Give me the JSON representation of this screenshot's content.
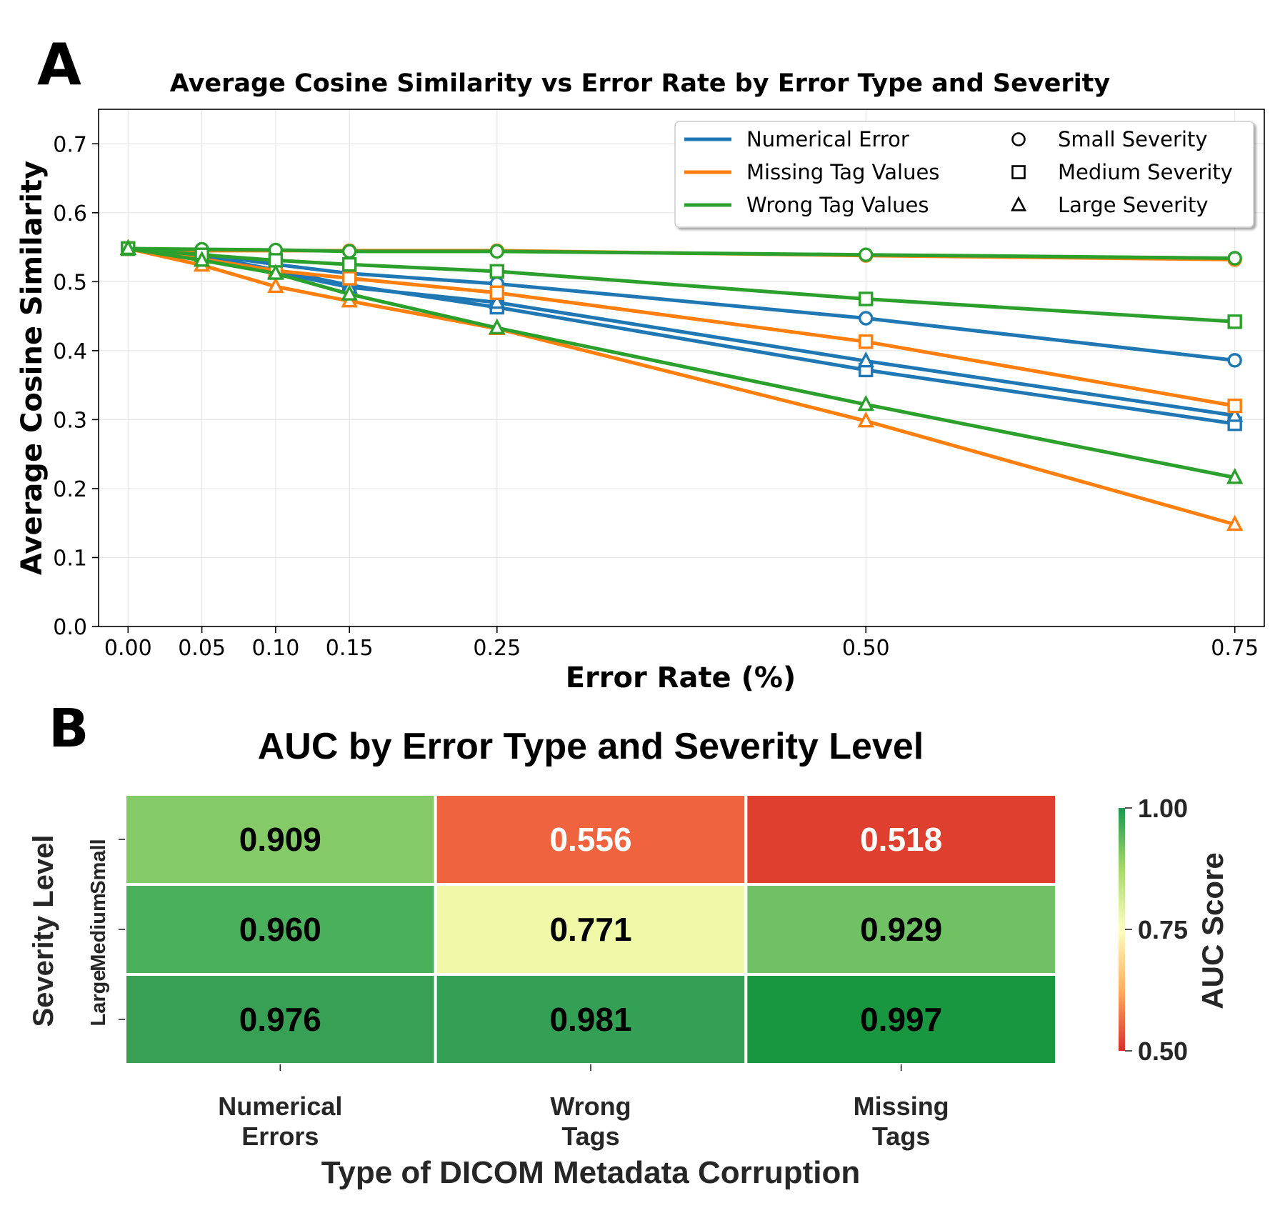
{
  "panel_a": {
    "panel_label": "A",
    "chart_data": {
      "type": "line",
      "title": "Average Cosine Similarity vs Error Rate by Error Type and Severity",
      "xlabel": "Error Rate (%)",
      "ylabel": "Average Cosine Similarity",
      "x": [
        0.0,
        0.05,
        0.1,
        0.15,
        0.25,
        0.5,
        0.75
      ],
      "x_tick_labels": [
        "0.00",
        "0.05",
        "0.10",
        "0.15",
        "0.25",
        "0.50",
        "0.75"
      ],
      "y_ticks": [
        0.0,
        0.1,
        0.2,
        0.3,
        0.4,
        0.5,
        0.6,
        0.7
      ],
      "y_tick_labels": [
        "0.0",
        "0.1",
        "0.2",
        "0.3",
        "0.4",
        "0.5",
        "0.6",
        "0.7"
      ],
      "xlim": [
        -0.02,
        0.77
      ],
      "ylim": [
        0.0,
        0.75
      ],
      "grid": true,
      "legend_position": "top-right",
      "legend_colors": [
        {
          "label": "Numerical Error",
          "color": "#1f77b4"
        },
        {
          "label": "Missing Tag Values",
          "color": "#ff7f0e"
        },
        {
          "label": "Wrong Tag Values",
          "color": "#2ca02c"
        }
      ],
      "legend_markers": [
        {
          "label": "Small Severity",
          "marker": "circle"
        },
        {
          "label": "Medium Severity",
          "marker": "square"
        },
        {
          "label": "Large Severity",
          "marker": "triangle"
        }
      ],
      "series": [
        {
          "name": "Numerical Error - Small",
          "error_type": "Numerical Error",
          "severity": "Small",
          "color": "#1f77b4",
          "marker": "circle",
          "values": [
            0.548,
            0.54,
            0.525,
            0.512,
            0.497,
            0.447,
            0.386
          ]
        },
        {
          "name": "Numerical Error - Medium",
          "error_type": "Numerical Error",
          "severity": "Medium",
          "color": "#1f77b4",
          "marker": "square",
          "values": [
            0.548,
            0.538,
            0.517,
            0.495,
            0.463,
            0.372,
            0.294
          ]
        },
        {
          "name": "Numerical Error - Large",
          "error_type": "Numerical Error",
          "severity": "Large",
          "color": "#1f77b4",
          "marker": "triangle",
          "values": [
            0.548,
            0.537,
            0.514,
            0.492,
            0.47,
            0.385,
            0.306
          ]
        },
        {
          "name": "Missing Tag Values - Small",
          "error_type": "Missing Tag Values",
          "severity": "Small",
          "color": "#ff7f0e",
          "marker": "circle",
          "values": [
            0.548,
            0.545,
            0.545,
            0.545,
            0.545,
            0.538,
            0.532
          ]
        },
        {
          "name": "Missing Tag Values - Medium",
          "error_type": "Missing Tag Values",
          "severity": "Medium",
          "color": "#ff7f0e",
          "marker": "square",
          "values": [
            0.548,
            0.533,
            0.516,
            0.505,
            0.484,
            0.413,
            0.32
          ]
        },
        {
          "name": "Missing Tag Values - Large",
          "error_type": "Missing Tag Values",
          "severity": "Large",
          "color": "#ff7f0e",
          "marker": "triangle",
          "values": [
            0.548,
            0.524,
            0.493,
            0.472,
            0.432,
            0.298,
            0.148
          ]
        },
        {
          "name": "Wrong Tag Values - Small",
          "error_type": "Wrong Tag Values",
          "severity": "Small",
          "color": "#2ca02c",
          "marker": "circle",
          "values": [
            0.548,
            0.547,
            0.546,
            0.544,
            0.544,
            0.539,
            0.534
          ]
        },
        {
          "name": "Wrong Tag Values - Medium",
          "error_type": "Wrong Tag Values",
          "severity": "Medium",
          "color": "#2ca02c",
          "marker": "square",
          "values": [
            0.548,
            0.539,
            0.531,
            0.525,
            0.515,
            0.475,
            0.442
          ]
        },
        {
          "name": "Wrong Tag Values - Large",
          "error_type": "Wrong Tag Values",
          "severity": "Large",
          "color": "#2ca02c",
          "marker": "triangle",
          "values": [
            0.548,
            0.531,
            0.512,
            0.482,
            0.433,
            0.322,
            0.216
          ]
        }
      ]
    }
  },
  "panel_b": {
    "panel_label": "B",
    "chart_data": {
      "type": "heatmap",
      "title": "AUC by Error Type and Severity Level",
      "xlabel": "Type of DICOM Metadata Corruption",
      "ylabel": "Severity Level",
      "columns": [
        {
          "line1": "Numerical",
          "line2": "Errors"
        },
        {
          "line1": "Wrong",
          "line2": "Tags"
        },
        {
          "line1": "Missing",
          "line2": "Tags"
        }
      ],
      "rows": [
        "Small",
        "Medium",
        "Large"
      ],
      "values": [
        [
          0.909,
          0.556,
          0.518
        ],
        [
          0.96,
          0.771,
          0.929
        ],
        [
          0.976,
          0.981,
          0.997
        ]
      ],
      "value_labels": [
        [
          "0.909",
          "0.556",
          "0.518"
        ],
        [
          "0.960",
          "0.771",
          "0.929"
        ],
        [
          "0.976",
          "0.981",
          "0.997"
        ]
      ],
      "cell_colors": [
        [
          "#84ca66",
          "#ef633f",
          "#de3f2e"
        ],
        [
          "#4bb05c",
          "#eff9a7",
          "#70c164"
        ],
        [
          "#37a055",
          "#33a055",
          "#199640"
        ]
      ],
      "colormap": "RdYlGn",
      "vmin": 0.5,
      "vmax": 1.0,
      "colorbar_label": "AUC Score",
      "colorbar_ticks": [
        0.5,
        0.75,
        1.0
      ],
      "colorbar_tick_labels": [
        "0.50",
        "0.75",
        "1.00"
      ]
    }
  }
}
